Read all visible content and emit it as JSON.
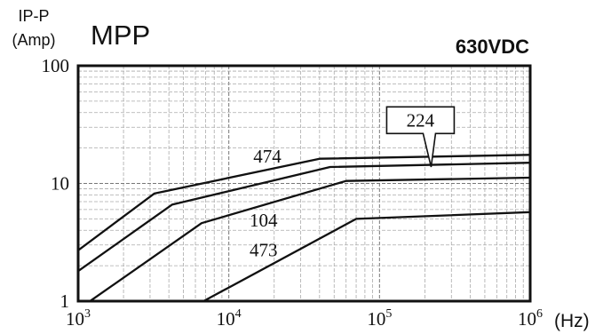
{
  "chart_data": {
    "type": "line",
    "title": "MPP",
    "subtitle": "630VDC",
    "ylabel_line1": "IP-P",
    "ylabel_line2": "(Amp)",
    "xlabel": "(Hz)",
    "x_scale": "log",
    "y_scale": "log",
    "xlim": [
      1000,
      1000000
    ],
    "ylim": [
      1,
      100
    ],
    "grid": true,
    "x_ticks": [
      {
        "value": 1000,
        "base": "10",
        "exp": "3"
      },
      {
        "value": 10000,
        "base": "10",
        "exp": "4"
      },
      {
        "value": 100000,
        "base": "10",
        "exp": "5"
      },
      {
        "value": 1000000,
        "base": "10",
        "exp": "6"
      }
    ],
    "y_ticks": [
      {
        "value": 100,
        "label": "100"
      },
      {
        "value": 10,
        "label": "10"
      },
      {
        "value": 1,
        "label": "1"
      }
    ],
    "series": [
      {
        "name": "474",
        "x": [
          1000,
          3200,
          40000,
          1000000
        ],
        "y": [
          2.7,
          8.2,
          16.2,
          17.5
        ]
      },
      {
        "name": "224",
        "x": [
          1000,
          4200,
          47000,
          1000000
        ],
        "y": [
          1.8,
          6.6,
          13.8,
          15.0
        ]
      },
      {
        "name": "104",
        "x": [
          1200,
          6600,
          60000,
          1000000
        ],
        "y": [
          1.0,
          4.6,
          10.5,
          11.2
        ]
      },
      {
        "name": "473",
        "x": [
          6800,
          70000,
          1000000
        ],
        "y": [
          1.0,
          5.0,
          5.7
        ]
      }
    ],
    "annotations": [
      {
        "label": "474",
        "x": 18000,
        "y": 15.0,
        "style": "inline"
      },
      {
        "label": "224",
        "x": 220000,
        "y": 13.8,
        "style": "callout",
        "box_x": 220000,
        "box_y": 30
      },
      {
        "label": "104",
        "x": 17000,
        "y": 4.3,
        "style": "inline"
      },
      {
        "label": "473",
        "x": 17000,
        "y": 2.4,
        "style": "inline"
      }
    ]
  }
}
